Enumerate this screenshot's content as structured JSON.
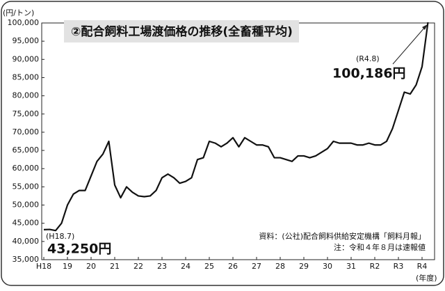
{
  "chart_data": {
    "type": "line",
    "title": "②配合飼料工場渡価格の推移(全畜種平均)",
    "y_unit": "(円/トン)",
    "x_unit": "(年度)",
    "categories": [
      "H18",
      null,
      null,
      null,
      "19",
      null,
      null,
      null,
      "20",
      null,
      null,
      null,
      "21",
      null,
      null,
      null,
      "22",
      null,
      null,
      null,
      "23",
      null,
      null,
      null,
      "24",
      null,
      null,
      null,
      "25",
      null,
      null,
      null,
      "26",
      null,
      null,
      null,
      "27",
      null,
      null,
      null,
      "28",
      null,
      null,
      null,
      "29",
      null,
      null,
      null,
      "30",
      null,
      null,
      null,
      "31",
      null,
      null,
      null,
      "R2",
      null,
      null,
      null,
      "R3",
      null,
      null,
      null,
      "R4",
      null
    ],
    "values": [
      43250,
      43300,
      43000,
      45000,
      50000,
      53000,
      54000,
      54000,
      58000,
      62000,
      64000,
      67500,
      55500,
      52000,
      55000,
      53500,
      52500,
      52300,
      52500,
      54000,
      57500,
      58500,
      57500,
      56000,
      56500,
      57500,
      62500,
      63000,
      67500,
      67000,
      66000,
      67000,
      68500,
      66000,
      68500,
      67500,
      66500,
      66500,
      66000,
      63000,
      63000,
      62500,
      62000,
      63500,
      63500,
      63000,
      63500,
      64500,
      65500,
      67500,
      67000,
      67000,
      67000,
      66500,
      66500,
      67000,
      66500,
      66500,
      67500,
      71000,
      76000,
      81000,
      80500,
      83000,
      88000,
      100186
    ],
    "color": "#111111",
    "ylim": [
      35000,
      100000
    ],
    "yticks": [
      {
        "value": 35000,
        "label": "35,000"
      },
      {
        "value": 40000,
        "label": "40,000"
      },
      {
        "value": 45000,
        "label": "45,000"
      },
      {
        "value": 50000,
        "label": "50,000"
      },
      {
        "value": 55000,
        "label": "55,000"
      },
      {
        "value": 60000,
        "label": "60,000"
      },
      {
        "value": 65000,
        "label": "65,000"
      },
      {
        "value": 70000,
        "label": "70,000"
      },
      {
        "value": 75000,
        "label": "75,000"
      },
      {
        "value": 80000,
        "label": "80,000"
      },
      {
        "value": 85000,
        "label": "85,000"
      },
      {
        "value": 90000,
        "label": "90,000"
      },
      {
        "value": 95000,
        "label": "95,000"
      },
      {
        "value": 100000,
        "label": "100,000"
      }
    ],
    "grid": false,
    "annotations": {
      "start_date": "(H18.7)",
      "start_value": "43,250円",
      "end_date": "(R4.8)",
      "end_value": "100,186円"
    },
    "source": "資料：(公社)配合飼料供給安定機構「飼料月報」",
    "note": "注：令和４年８月は速報値"
  }
}
